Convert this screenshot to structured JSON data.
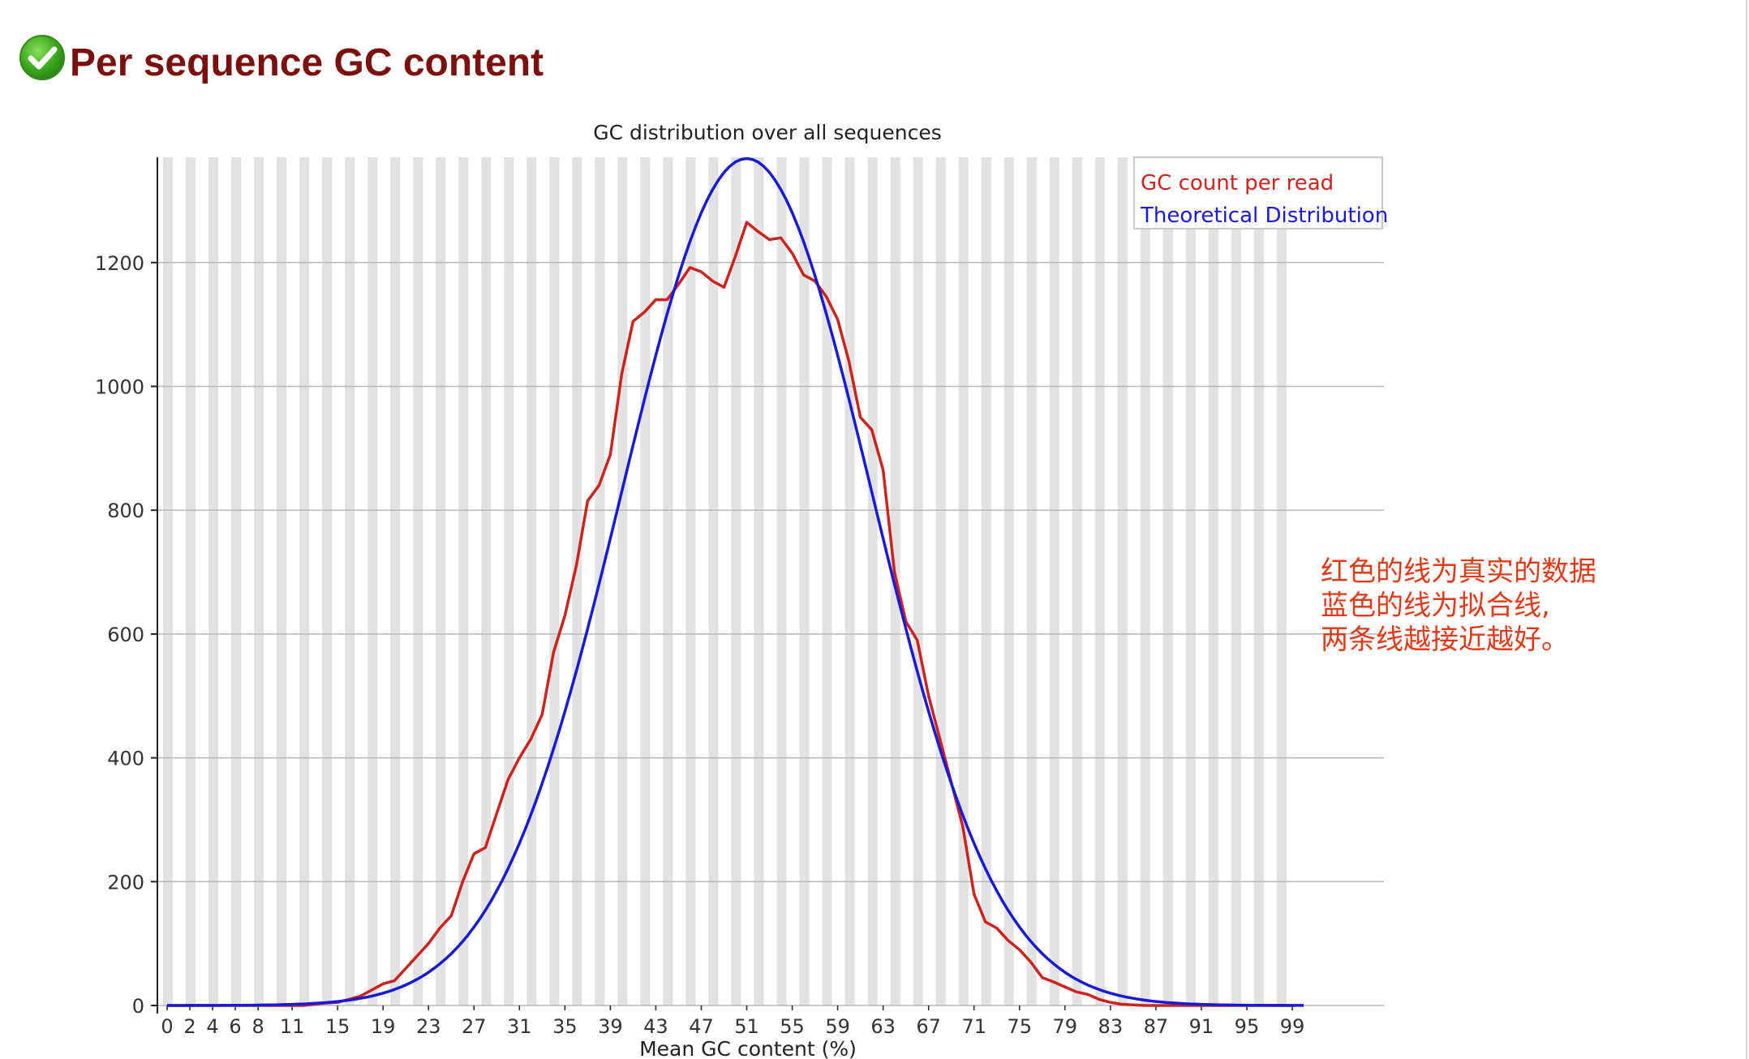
{
  "header": {
    "title": "Per sequence GC content",
    "status_icon": "check-circle-icon",
    "status_color": "#3aa81e"
  },
  "annotation": {
    "lines": [
      "红色的线为真实的数据",
      "蓝色的线为拟合线,",
      "两条线越接近越好。"
    ],
    "color": "#e03a1a"
  },
  "chart_data": {
    "type": "line",
    "title": "GC distribution over all sequences",
    "xlabel": "Mean GC content (%)",
    "ylabel": "",
    "xlim": [
      0,
      100
    ],
    "ylim": [
      0,
      1370
    ],
    "grid": true,
    "legend_position": "top-right",
    "x_tick_labels": [
      "0",
      "2",
      "4",
      "6",
      "8",
      "11",
      "15",
      "19",
      "23",
      "27",
      "31",
      "35",
      "39",
      "43",
      "47",
      "51",
      "55",
      "59",
      "63",
      "67",
      "71",
      "75",
      "79",
      "83",
      "87",
      "91",
      "95",
      "99"
    ],
    "y_ticks": [
      0,
      200,
      400,
      600,
      800,
      1000,
      1200
    ],
    "series": [
      {
        "name": "GC count per read",
        "color": "#cc2222",
        "points": [
          [
            0,
            0
          ],
          [
            11,
            0
          ],
          [
            12,
            0
          ],
          [
            13,
            2
          ],
          [
            14,
            4
          ],
          [
            15,
            5
          ],
          [
            16,
            10
          ],
          [
            17,
            15
          ],
          [
            18,
            25
          ],
          [
            19,
            35
          ],
          [
            20,
            40
          ],
          [
            21,
            60
          ],
          [
            22,
            80
          ],
          [
            23,
            100
          ],
          [
            24,
            125
          ],
          [
            25,
            145
          ],
          [
            26,
            200
          ],
          [
            27,
            245
          ],
          [
            28,
            255
          ],
          [
            29,
            310
          ],
          [
            30,
            365
          ],
          [
            31,
            400
          ],
          [
            32,
            430
          ],
          [
            33,
            470
          ],
          [
            34,
            570
          ],
          [
            35,
            630
          ],
          [
            36,
            710
          ],
          [
            37,
            815
          ],
          [
            38,
            840
          ],
          [
            39,
            890
          ],
          [
            40,
            1020
          ],
          [
            41,
            1105
          ],
          [
            42,
            1120
          ],
          [
            43,
            1140
          ],
          [
            44,
            1140
          ],
          [
            45,
            1165
          ],
          [
            46,
            1192
          ],
          [
            47,
            1185
          ],
          [
            48,
            1170
          ],
          [
            49,
            1160
          ],
          [
            50,
            1210
          ],
          [
            51,
            1265
          ],
          [
            52,
            1250
          ],
          [
            53,
            1237
          ],
          [
            54,
            1240
          ],
          [
            55,
            1215
          ],
          [
            56,
            1180
          ],
          [
            57,
            1170
          ],
          [
            58,
            1145
          ],
          [
            59,
            1108
          ],
          [
            60,
            1040
          ],
          [
            61,
            950
          ],
          [
            62,
            930
          ],
          [
            63,
            865
          ],
          [
            64,
            700
          ],
          [
            65,
            620
          ],
          [
            66,
            590
          ],
          [
            67,
            500
          ],
          [
            68,
            430
          ],
          [
            69,
            360
          ],
          [
            70,
            290
          ],
          [
            71,
            180
          ],
          [
            72,
            135
          ],
          [
            73,
            125
          ],
          [
            74,
            105
          ],
          [
            75,
            90
          ],
          [
            76,
            70
          ],
          [
            77,
            45
          ],
          [
            78,
            38
          ],
          [
            79,
            30
          ],
          [
            80,
            22
          ],
          [
            81,
            18
          ],
          [
            82,
            10
          ],
          [
            83,
            5
          ],
          [
            84,
            2
          ],
          [
            85,
            1
          ],
          [
            86,
            0
          ],
          [
            99,
            0
          ]
        ]
      },
      {
        "name": "Theoretical Distribution",
        "color": "#1a1ad6",
        "mean": 51.0,
        "sd": 11.0,
        "peak": 1368
      }
    ]
  }
}
